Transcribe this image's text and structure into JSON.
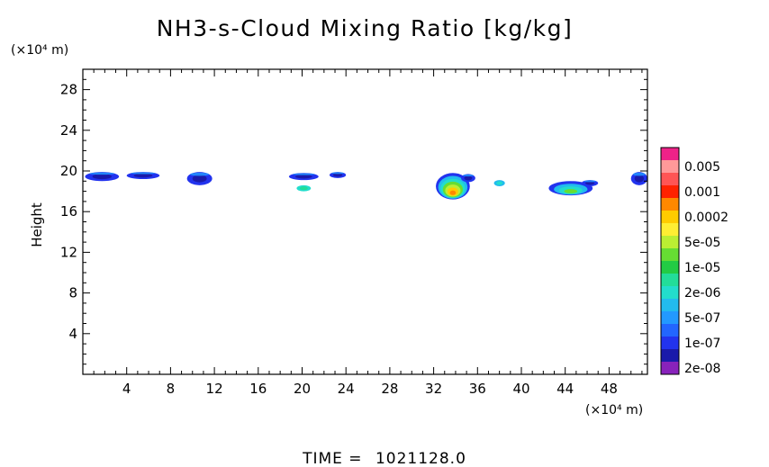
{
  "chart_data": {
    "type": "heatmap",
    "title": "NH3-s-Cloud Mixing Ratio [kg/kg]",
    "ylabel": "Height",
    "x_unit": "(×10⁴ m)",
    "y_unit": "(×10⁴ m)",
    "xlim": [
      0,
      51.5
    ],
    "ylim": [
      0,
      30
    ],
    "x_ticks": [
      "4",
      "8",
      "12",
      "16",
      "20",
      "24",
      "28",
      "32",
      "36",
      "40",
      "44",
      "48"
    ],
    "y_ticks": [
      "4",
      "8",
      "12",
      "16",
      "20",
      "24",
      "28"
    ],
    "colorbar": {
      "labels": [
        "0.005",
        "0.001",
        "0.0002",
        "5e-05",
        "1e-05",
        "2e-06",
        "5e-07",
        "1e-07",
        "2e-08"
      ],
      "colors": [
        "#ee2288",
        "#ff9999",
        "#ff5555",
        "#ff2200",
        "#ff8800",
        "#ffcc00",
        "#ffee33",
        "#bbee33",
        "#66dd33",
        "#22cc44",
        "#22dd99",
        "#22ddcc",
        "#22bbee",
        "#2299ff",
        "#2266ff",
        "#2233ee",
        "#1a1aaa",
        "#8822bb"
      ]
    },
    "regions": [
      {
        "x": [
          0.2,
          3.3
        ],
        "y": [
          19.0,
          19.9
        ],
        "level": "1e-07"
      },
      {
        "x": [
          4.0,
          7.0
        ],
        "y": [
          19.2,
          19.9
        ],
        "level": "1e-07"
      },
      {
        "x": [
          9.5,
          11.8
        ],
        "y": [
          18.6,
          19.9
        ],
        "level": "1e-07"
      },
      {
        "x": [
          18.8,
          21.5
        ],
        "y": [
          19.1,
          19.8
        ],
        "level": "1e-07"
      },
      {
        "x": [
          22.5,
          24.0
        ],
        "y": [
          19.3,
          19.9
        ],
        "level": "1e-07"
      },
      {
        "x": [
          19.5,
          20.8
        ],
        "y": [
          18.0,
          18.6
        ],
        "level": "2e-06"
      },
      {
        "x": [
          32.2,
          35.3
        ],
        "y": [
          17.2,
          19.8
        ],
        "level": "0.0002"
      },
      {
        "x": [
          34.5,
          35.8
        ],
        "y": [
          18.9,
          19.7
        ],
        "level": "1e-07"
      },
      {
        "x": [
          37.5,
          38.5
        ],
        "y": [
          18.5,
          19.1
        ],
        "level": "5e-07"
      },
      {
        "x": [
          42.5,
          46.5
        ],
        "y": [
          17.6,
          19.0
        ],
        "level": "5e-06"
      },
      {
        "x": [
          45.5,
          47.0
        ],
        "y": [
          18.5,
          19.1
        ],
        "level": "1e-07"
      },
      {
        "x": [
          50.0,
          51.5
        ],
        "y": [
          18.6,
          19.9
        ],
        "level": "1e-07"
      }
    ]
  },
  "footer": {
    "time_label": "TIME =",
    "time_value": "1021128.0"
  }
}
